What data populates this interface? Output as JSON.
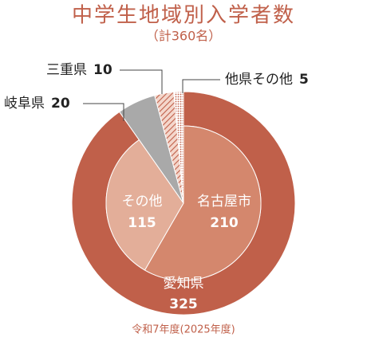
{
  "chart_data": {
    "type": "nested-pie",
    "title": "中学生地域別入学者数",
    "subtitle": "（計360名）",
    "footnote": "令和7年度(2025年度)",
    "outer": {
      "categories": [
        "愛知県",
        "岐阜県",
        "三重県",
        "他県その他"
      ],
      "values": [
        325,
        20,
        10,
        5
      ],
      "colors": [
        "#c0604a",
        "#a9a9a9",
        "#c0604a",
        "#c0604a"
      ]
    },
    "inner": {
      "categories": [
        "名古屋市",
        "その他"
      ],
      "values": [
        210,
        115
      ],
      "colors": [
        "#d4876d",
        "#e3ae99"
      ]
    }
  }
}
